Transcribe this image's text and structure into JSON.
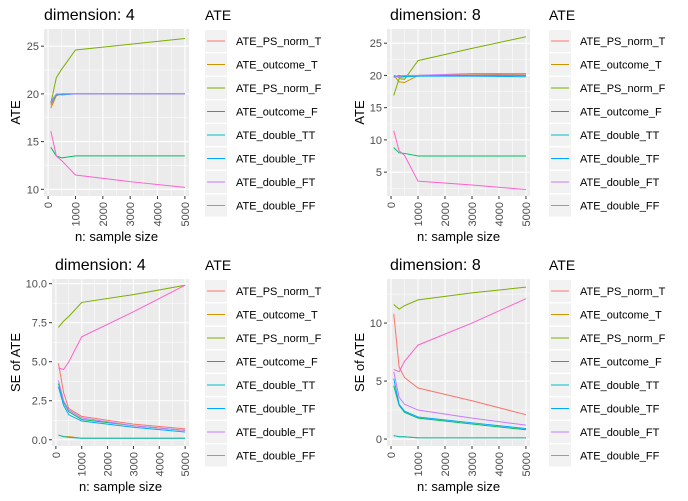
{
  "colors": {
    "ATE_PS_norm_T": "#F8766D",
    "ATE_outcome_T": "#CD9600",
    "ATE_PS_norm_F": "#7CAE00",
    "ATE_outcome_F": "#00BE67",
    "ATE_double_TT": "#00BFC4",
    "ATE_double_TF": "#00A9FF",
    "ATE_double_FT": "#C77CFF",
    "ATE_double_FF": "#FF61CC",
    "panel_bg": "#EBEBEB",
    "grid": "#FFFFFF"
  },
  "chart_data": [
    {
      "type": "line",
      "title": "dimension: 4",
      "xlabel": "n: sample size",
      "ylabel": "ATE",
      "legend_title": "ATE",
      "legend_position": "right",
      "grid": true,
      "xlim": [
        -150,
        5150
      ],
      "ylim": [
        9.3,
        26.8
      ],
      "x_ticks": [
        0,
        1000,
        2000,
        3000,
        4000,
        5000
      ],
      "x_tick_labels": [
        "0",
        "1000",
        "2000",
        "3000",
        "4000",
        "5000"
      ],
      "y_ticks": [
        10,
        15,
        20,
        25
      ],
      "y_tick_labels": [
        "10",
        "15",
        "20",
        "25"
      ],
      "series": [
        {
          "name": "ATE_PS_norm_T",
          "x": [
            100,
            300,
            500,
            1000,
            3000,
            5000
          ],
          "y": [
            18.8,
            19.9,
            20.0,
            20.0,
            20.0,
            20.0
          ]
        },
        {
          "name": "ATE_outcome_T",
          "x": [
            100,
            300,
            500,
            1000,
            3000,
            5000
          ],
          "y": [
            18.5,
            19.8,
            20.0,
            20.0,
            20.0,
            20.0
          ]
        },
        {
          "name": "ATE_PS_norm_F",
          "x": [
            100,
            300,
            500,
            1000,
            3000,
            5000
          ],
          "y": [
            19.0,
            21.7,
            22.6,
            24.6,
            25.2,
            25.8
          ]
        },
        {
          "name": "ATE_outcome_F",
          "x": [
            100,
            300,
            500,
            1000,
            3000,
            5000
          ],
          "y": [
            14.4,
            13.5,
            13.3,
            13.5,
            13.5,
            13.5
          ]
        },
        {
          "name": "ATE_double_TT",
          "x": [
            100,
            300,
            500,
            1000,
            3000,
            5000
          ],
          "y": [
            19.0,
            19.9,
            20.0,
            20.0,
            20.0,
            20.0
          ]
        },
        {
          "name": "ATE_double_TF",
          "x": [
            100,
            300,
            500,
            1000,
            3000,
            5000
          ],
          "y": [
            19.2,
            20.0,
            19.9,
            20.0,
            20.0,
            20.0
          ]
        },
        {
          "name": "ATE_double_FT",
          "x": [
            100,
            300,
            500,
            1000,
            3000,
            5000
          ],
          "y": [
            19.1,
            20.0,
            20.0,
            20.0,
            20.0,
            20.0
          ]
        },
        {
          "name": "ATE_double_FF",
          "x": [
            100,
            300,
            500,
            1000,
            3000,
            5000
          ],
          "y": [
            16.1,
            13.5,
            13.0,
            11.5,
            10.8,
            10.2
          ]
        }
      ]
    },
    {
      "type": "line",
      "title": "dimension: 8",
      "xlabel": "n: sample size",
      "ylabel": "ATE",
      "legend_title": "ATE",
      "legend_position": "right",
      "grid": true,
      "xlim": [
        -150,
        5150
      ],
      "ylim": [
        1.3,
        27.2
      ],
      "x_ticks": [
        0,
        1000,
        2000,
        3000,
        4000,
        5000
      ],
      "x_tick_labels": [
        "0",
        "1000",
        "2000",
        "3000",
        "4000",
        "5000"
      ],
      "y_ticks": [
        5,
        10,
        15,
        20,
        25
      ],
      "y_tick_labels": [
        "5",
        "10",
        "15",
        "20",
        "25"
      ],
      "series": [
        {
          "name": "ATE_PS_norm_T",
          "x": [
            100,
            300,
            500,
            1000,
            3000,
            5000
          ],
          "y": [
            20.0,
            19.8,
            19.8,
            20.0,
            20.1,
            20.2
          ]
        },
        {
          "name": "ATE_outcome_T",
          "x": [
            100,
            300,
            500,
            1000,
            3000,
            5000
          ],
          "y": [
            20.0,
            19.0,
            18.9,
            20.0,
            20.0,
            20.0
          ]
        },
        {
          "name": "ATE_PS_norm_F",
          "x": [
            100,
            300,
            500,
            1000,
            3000,
            5000
          ],
          "y": [
            16.9,
            19.5,
            19.4,
            22.3,
            24.2,
            26.0
          ]
        },
        {
          "name": "ATE_outcome_F",
          "x": [
            100,
            300,
            500,
            1000,
            3000,
            5000
          ],
          "y": [
            8.8,
            8.0,
            7.9,
            7.5,
            7.5,
            7.5
          ]
        },
        {
          "name": "ATE_double_TT",
          "x": [
            100,
            300,
            500,
            1000,
            3000,
            5000
          ],
          "y": [
            19.9,
            19.7,
            19.8,
            19.9,
            20.0,
            20.0
          ]
        },
        {
          "name": "ATE_double_TF",
          "x": [
            100,
            300,
            500,
            1000,
            3000,
            5000
          ],
          "y": [
            19.8,
            20.0,
            19.9,
            19.9,
            19.9,
            19.8
          ]
        },
        {
          "name": "ATE_double_FT",
          "x": [
            100,
            300,
            500,
            1000,
            3000,
            5000
          ],
          "y": [
            19.7,
            19.9,
            20.0,
            20.0,
            20.3,
            20.3
          ]
        },
        {
          "name": "ATE_double_FF",
          "x": [
            100,
            300,
            500,
            1000,
            3000,
            5000
          ],
          "y": [
            11.4,
            8.3,
            7.6,
            3.6,
            3.0,
            2.3
          ]
        }
      ]
    },
    {
      "type": "line",
      "title": "dimension: 4",
      "xlabel": "n: sample size",
      "ylabel": "SE of ATE",
      "legend_title": "ATE",
      "legend_position": "right",
      "grid": true,
      "xlim": [
        -150,
        5150
      ],
      "ylim": [
        -0.4,
        10.3
      ],
      "x_ticks": [
        0,
        1000,
        2000,
        3000,
        4000,
        5000
      ],
      "x_tick_labels": [
        "0",
        "1000",
        "2000",
        "3000",
        "4000",
        "5000"
      ],
      "y_ticks": [
        0,
        2.5,
        5,
        7.5,
        10
      ],
      "y_tick_labels": [
        "0.0",
        "2.5",
        "5.0",
        "7.5",
        "10.0"
      ],
      "series": [
        {
          "name": "ATE_PS_norm_T",
          "x": [
            100,
            300,
            500,
            1000,
            3000,
            5000
          ],
          "y": [
            4.9,
            3.0,
            2.0,
            1.5,
            1.0,
            0.7
          ]
        },
        {
          "name": "ATE_outcome_T",
          "x": [
            100,
            300,
            500,
            1000,
            3000,
            5000
          ],
          "y": [
            0.3,
            0.2,
            0.2,
            0.1,
            0.1,
            0.1
          ]
        },
        {
          "name": "ATE_PS_norm_F",
          "x": [
            100,
            300,
            500,
            1000,
            3000,
            5000
          ],
          "y": [
            7.2,
            7.6,
            7.9,
            8.8,
            9.3,
            9.9
          ]
        },
        {
          "name": "ATE_outcome_F",
          "x": [
            100,
            300,
            500,
            1000,
            3000,
            5000
          ],
          "y": [
            3.6,
            2.4,
            1.8,
            1.3,
            0.9,
            0.6
          ]
        },
        {
          "name": "ATE_double_TT",
          "x": [
            100,
            300,
            500,
            1000,
            3000,
            5000
          ],
          "y": [
            0.3,
            0.2,
            0.15,
            0.1,
            0.1,
            0.1
          ]
        },
        {
          "name": "ATE_double_TF",
          "x": [
            100,
            300,
            500,
            1000,
            3000,
            5000
          ],
          "y": [
            3.4,
            2.2,
            1.6,
            1.2,
            0.8,
            0.5
          ]
        },
        {
          "name": "ATE_double_FT",
          "x": [
            100,
            300,
            500,
            1000,
            3000,
            5000
          ],
          "y": [
            3.8,
            2.5,
            1.9,
            1.4,
            0.9,
            0.6
          ]
        },
        {
          "name": "ATE_double_FF",
          "x": [
            100,
            300,
            500,
            1000,
            3000,
            5000
          ],
          "y": [
            4.6,
            4.5,
            5.0,
            6.6,
            8.2,
            9.9
          ]
        }
      ]
    },
    {
      "type": "line",
      "title": "dimension: 8",
      "xlabel": "n: sample size",
      "ylabel": "SE of ATE",
      "legend_title": "ATE",
      "legend_position": "right",
      "grid": true,
      "xlim": [
        -150,
        5150
      ],
      "ylim": [
        -0.6,
        13.8
      ],
      "x_ticks": [
        0,
        1000,
        2000,
        3000,
        4000,
        5000
      ],
      "x_tick_labels": [
        "0",
        "1000",
        "2000",
        "3000",
        "4000",
        "5000"
      ],
      "y_ticks": [
        0,
        5,
        10
      ],
      "y_tick_labels": [
        "0",
        "5",
        "10"
      ],
      "series": [
        {
          "name": "ATE_PS_norm_T",
          "x": [
            100,
            300,
            500,
            1000,
            3000,
            5000
          ],
          "y": [
            10.8,
            6.2,
            5.3,
            4.4,
            3.3,
            2.1
          ]
        },
        {
          "name": "ATE_outcome_T",
          "x": [
            100,
            300,
            500,
            1000,
            3000,
            5000
          ],
          "y": [
            0.3,
            0.2,
            0.2,
            0.1,
            0.1,
            0.1
          ]
        },
        {
          "name": "ATE_PS_norm_F",
          "x": [
            100,
            300,
            500,
            1000,
            3000,
            5000
          ],
          "y": [
            11.6,
            11.2,
            11.5,
            12.0,
            12.6,
            13.1
          ]
        },
        {
          "name": "ATE_outcome_F",
          "x": [
            100,
            300,
            500,
            1000,
            3000,
            5000
          ],
          "y": [
            4.6,
            2.9,
            2.3,
            1.8,
            1.3,
            0.8
          ]
        },
        {
          "name": "ATE_double_TT",
          "x": [
            100,
            300,
            500,
            1000,
            3000,
            5000
          ],
          "y": [
            0.3,
            0.2,
            0.2,
            0.1,
            0.1,
            0.1
          ]
        },
        {
          "name": "ATE_double_TF",
          "x": [
            100,
            300,
            500,
            1000,
            3000,
            5000
          ],
          "y": [
            5.2,
            3.0,
            2.4,
            1.9,
            1.4,
            0.9
          ]
        },
        {
          "name": "ATE_double_FT",
          "x": [
            100,
            300,
            500,
            1000,
            3000,
            5000
          ],
          "y": [
            5.8,
            3.6,
            3.0,
            2.5,
            1.8,
            1.2
          ]
        },
        {
          "name": "ATE_double_FF",
          "x": [
            100,
            300,
            500,
            1000,
            3000,
            5000
          ],
          "y": [
            6.0,
            5.8,
            6.7,
            8.1,
            10.0,
            12.1
          ]
        }
      ]
    }
  ]
}
